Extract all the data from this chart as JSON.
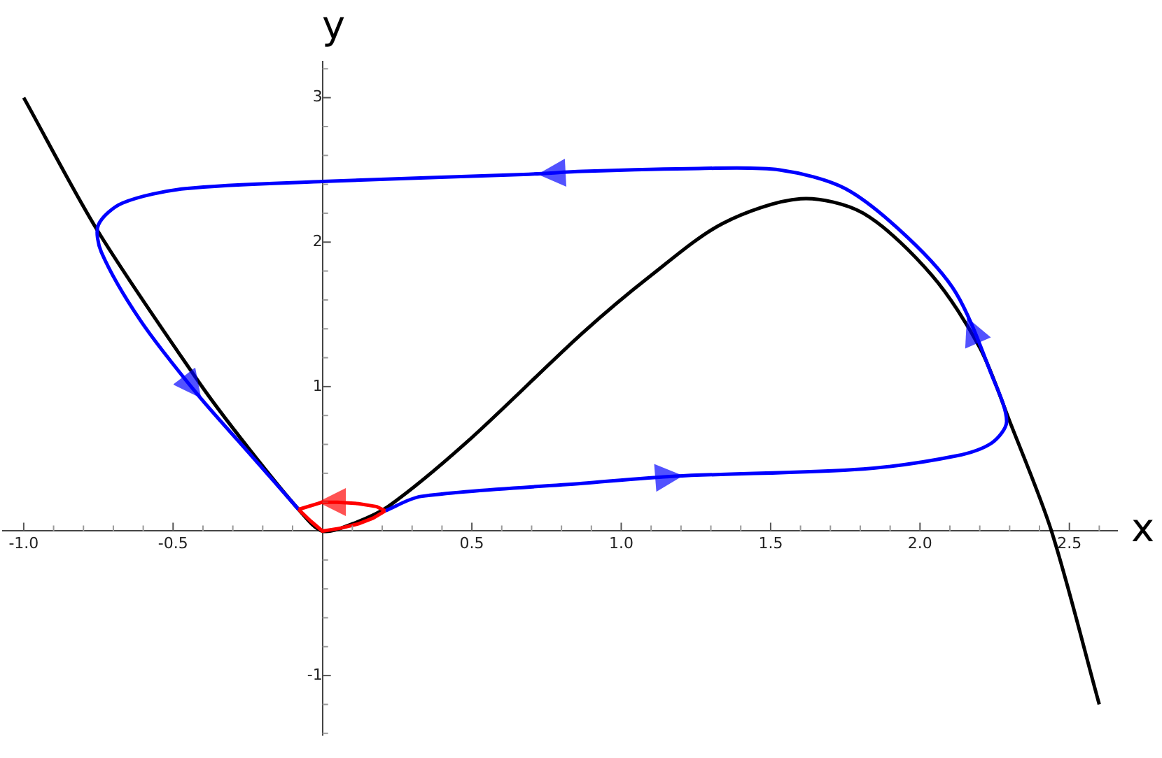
{
  "chart_data": {
    "type": "line",
    "xlabel": "x",
    "ylabel": "y",
    "xlim": [
      -1.07,
      2.66
    ],
    "ylim": [
      -1.41,
      3.25
    ],
    "xticks": [
      {
        "value": -1,
        "label": "-1.0"
      },
      {
        "value": -0.9,
        "label": null
      },
      {
        "value": -0.8,
        "label": null
      },
      {
        "value": -0.7,
        "label": null
      },
      {
        "value": -0.6,
        "label": null
      },
      {
        "value": -0.5,
        "label": "-0.5"
      },
      {
        "value": -0.4,
        "label": null
      },
      {
        "value": -0.3,
        "label": null
      },
      {
        "value": -0.2,
        "label": null
      },
      {
        "value": -0.1,
        "label": null
      },
      {
        "value": 0.1,
        "label": null
      },
      {
        "value": 0.2,
        "label": null
      },
      {
        "value": 0.3,
        "label": null
      },
      {
        "value": 0.4,
        "label": null
      },
      {
        "value": 0.5,
        "label": "0.5"
      },
      {
        "value": 0.6,
        "label": null
      },
      {
        "value": 0.7,
        "label": null
      },
      {
        "value": 0.8,
        "label": null
      },
      {
        "value": 0.9,
        "label": null
      },
      {
        "value": 1,
        "label": "1.0"
      },
      {
        "value": 1.1,
        "label": null
      },
      {
        "value": 1.2,
        "label": null
      },
      {
        "value": 1.3,
        "label": null
      },
      {
        "value": 1.4,
        "label": null
      },
      {
        "value": 1.5,
        "label": "1.5"
      },
      {
        "value": 1.6,
        "label": null
      },
      {
        "value": 1.7,
        "label": null
      },
      {
        "value": 1.8,
        "label": null
      },
      {
        "value": 1.9,
        "label": null
      },
      {
        "value": 2,
        "label": "2.0"
      },
      {
        "value": 2.1,
        "label": null
      },
      {
        "value": 2.2,
        "label": null
      },
      {
        "value": 2.3,
        "label": null
      },
      {
        "value": 2.4,
        "label": null
      },
      {
        "value": 2.5,
        "label": "2.5"
      },
      {
        "value": 2.6,
        "label": null
      }
    ],
    "yticks": [
      {
        "value": -1.4,
        "label": null
      },
      {
        "value": -1.2,
        "label": null
      },
      {
        "value": -1,
        "label": "-1"
      },
      {
        "value": -0.8,
        "label": null
      },
      {
        "value": -0.6,
        "label": null
      },
      {
        "value": -0.4,
        "label": null
      },
      {
        "value": -0.2,
        "label": null
      },
      {
        "value": 0.2,
        "label": null
      },
      {
        "value": 0.4,
        "label": null
      },
      {
        "value": 0.6,
        "label": null
      },
      {
        "value": 0.8,
        "label": null
      },
      1,
      {
        "value": 1.2,
        "label": null
      },
      {
        "value": 1.4,
        "label": null
      },
      {
        "value": 1.6,
        "label": null
      },
      {
        "value": 1.8,
        "label": null
      },
      2,
      {
        "value": 2.2,
        "label": null
      },
      {
        "value": 2.4,
        "label": null
      },
      {
        "value": 2.6,
        "label": null
      },
      {
        "value": 2.8,
        "label": null
      },
      3,
      {
        "value": 3.2,
        "label": null
      }
    ],
    "grid": false,
    "legend": false,
    "marker": "none",
    "line_style": "solid",
    "series": [
      {
        "color": "#000000",
        "x": [
          -1,
          -0.75,
          -0.41,
          -0.25,
          -0.08,
          0,
          0.1,
          0.22,
          0.48,
          0.87,
          1.1,
          1.34,
          1.6,
          1.81,
          2.04,
          2.2,
          2.3,
          2.44,
          2.6
        ],
        "values": [
          3,
          2.07,
          1.02,
          0.58,
          0.15,
          0,
          0.05,
          0.17,
          0.61,
          1.37,
          1.77,
          2.13,
          2.3,
          2.2,
          1.77,
          1.27,
          0.76,
          0,
          -1.2
        ]
      },
      {
        "color": "#0000ff",
        "x": [
          0.21,
          0.33,
          0.87,
          1.18,
          1.81,
          2.12,
          2.24,
          2.29,
          2.24,
          2.12,
          1.96,
          1.75,
          1.53,
          1.26,
          0.87,
          0.69,
          0,
          -0.46,
          -0.67,
          -0.75,
          -0.74,
          -0.61,
          -0.42,
          -0.25,
          -0.08
        ],
        "values": [
          0.14,
          0.24,
          0.33,
          0.38,
          0.43,
          0.52,
          0.61,
          0.76,
          1.08,
          1.65,
          2.03,
          2.37,
          2.5,
          2.51,
          2.49,
          2.47,
          2.42,
          2.37,
          2.27,
          2.12,
          1.93,
          1.46,
          0.95,
          0.55,
          0.15
        ]
      },
      {
        "color": "#ff0000",
        "x": [
          -0.08,
          -0.04,
          0,
          0.06,
          0.12,
          0.17,
          0.21
        ],
        "values": [
          0.15,
          0.07,
          0,
          0.02,
          0.05,
          0.09,
          0.14
        ]
      },
      {
        "color": "#ff0000",
        "x": [
          0.21,
          0.18,
          0.12,
          0.05,
          0,
          -0.08
        ],
        "values": [
          0.14,
          0.17,
          0.19,
          0.2,
          0.2,
          0.15
        ]
      }
    ]
  }
}
